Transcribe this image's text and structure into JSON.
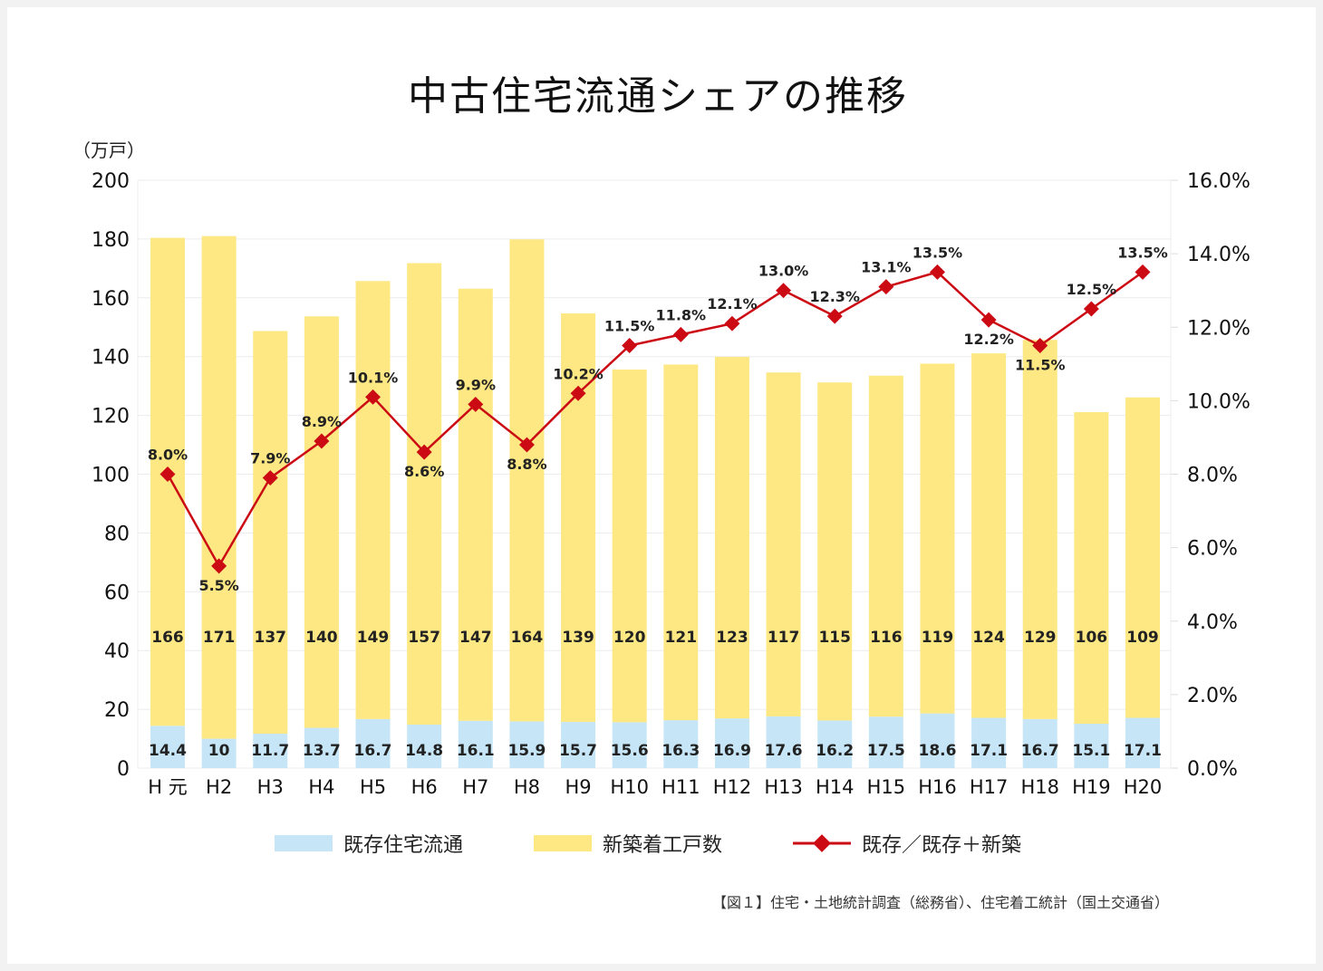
{
  "chart_data": {
    "type": "bar",
    "title": "中古住宅流通シェアの推移",
    "ylabel": "（万戸）",
    "ylim": [
      0,
      200
    ],
    "y2lim": [
      0,
      16
    ],
    "y_ticks": [
      "0",
      "20",
      "40",
      "60",
      "80",
      "100",
      "120",
      "140",
      "160",
      "180",
      "200"
    ],
    "y2_ticks": [
      "0.0%",
      "2.0%",
      "4.0%",
      "6.0%",
      "8.0%",
      "10.0%",
      "12.0%",
      "14.0%",
      "16.0%"
    ],
    "grid": true,
    "stacked": true,
    "categories": [
      "H 元",
      "H2",
      "H3",
      "H4",
      "H5",
      "H6",
      "H7",
      "H8",
      "H9",
      "H10",
      "H11",
      "H12",
      "H13",
      "H14",
      "H15",
      "H16",
      "H17",
      "H18",
      "H19",
      "H20"
    ],
    "series": [
      {
        "name": "既存住宅流通",
        "type": "bar",
        "color": "#c6e6f7",
        "values": [
          14.4,
          10,
          11.7,
          13.7,
          16.7,
          14.8,
          16.1,
          15.9,
          15.7,
          15.6,
          16.3,
          16.9,
          17.6,
          16.2,
          17.5,
          18.6,
          17.1,
          16.7,
          15.1,
          17.1
        ]
      },
      {
        "name": "新築着工戸数",
        "type": "bar",
        "color": "#fde883",
        "values": [
          166,
          171,
          137,
          140,
          149,
          157,
          147,
          164,
          139,
          120,
          121,
          123,
          117,
          115,
          116,
          119,
          124,
          129,
          106,
          109
        ]
      },
      {
        "name": "既存／既存＋新築",
        "type": "line",
        "axis": "right",
        "color": "#cc0a14",
        "marker": "diamond",
        "values": [
          8.0,
          5.5,
          7.9,
          8.9,
          10.1,
          8.6,
          9.9,
          8.8,
          10.2,
          11.5,
          11.8,
          12.1,
          13.0,
          12.3,
          13.1,
          13.5,
          12.2,
          11.5,
          12.5,
          13.5
        ],
        "labels": [
          "8.0%",
          "5.5%",
          "7.9%",
          "8.9%",
          "10.1%",
          "8.6%",
          "9.9%",
          "8.8%",
          "10.2%",
          "11.5%",
          "11.8%",
          "12.1%",
          "13.0%",
          "12.3%",
          "13.1%",
          "13.5%",
          "12.2%",
          "11.5%",
          "12.5%",
          "13.5%"
        ]
      }
    ],
    "legend": "bottom",
    "source": "【図１】住宅・土地統計調査（総務省）、住宅着工統計（国土交通省）"
  }
}
